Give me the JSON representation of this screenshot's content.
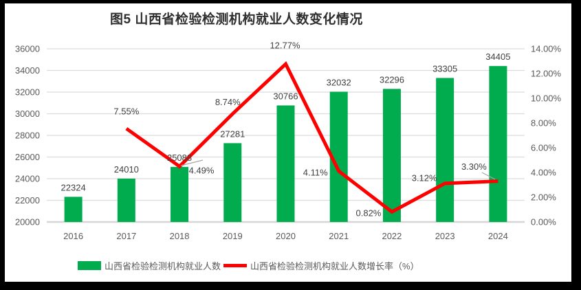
{
  "title": "图5 山西省检验检测机构就业人数变化情况",
  "chart_data": {
    "type": "bar+line combo",
    "title": "图5 山西省检验检测机构就业人数变化情况",
    "categories": [
      "2016",
      "2017",
      "2018",
      "2019",
      "2020",
      "2021",
      "2022",
      "2023",
      "2024"
    ],
    "series": [
      {
        "name": "山西省检验检测机构就业人数",
        "type": "bar",
        "axis": "left",
        "values": [
          22324,
          24010,
          25088,
          27281,
          30766,
          32032,
          32296,
          33305,
          34405
        ],
        "labels": [
          "22324",
          "24010",
          "25088",
          "27281",
          "30766",
          "32032",
          "32296",
          "33305",
          "34405"
        ]
      },
      {
        "name": "山西省检验检测机构就业人数增长率（%）",
        "type": "line",
        "axis": "right",
        "values": [
          null,
          7.55,
          4.49,
          8.74,
          12.77,
          4.11,
          0.82,
          3.12,
          3.3
        ],
        "labels": [
          null,
          "7.55%",
          "4.49%",
          "8.74%",
          "12.77%",
          "4.11%",
          "0.82%",
          "3.12%",
          "3.30%"
        ]
      }
    ],
    "left_axis": {
      "min": 20000,
      "max": 36000,
      "ticks": [
        "20000",
        "22000",
        "24000",
        "26000",
        "28000",
        "30000",
        "32000",
        "34000",
        "36000"
      ]
    },
    "right_axis": {
      "min": 0,
      "max": 14,
      "ticks": [
        "0.00%",
        "2.00%",
        "4.00%",
        "6.00%",
        "8.00%",
        "10.00%",
        "12.00%",
        "14.00%"
      ]
    },
    "grid": true,
    "legend_position": "bottom"
  },
  "legend": {
    "bar_label": "山西省检验检测机构就业人数",
    "line_label": "山西省检验检测机构就业人数增长率（%）"
  },
  "colors": {
    "bar": "#00AC4E",
    "line": "#FF0000",
    "grid": "#DCDCDC",
    "axis_line": "#D6D6D6",
    "axis_text": "#595959",
    "data_label": "#404040",
    "leader": "#A6A6A6",
    "frame": "#000000",
    "title_text": "#2e2e2e"
  }
}
